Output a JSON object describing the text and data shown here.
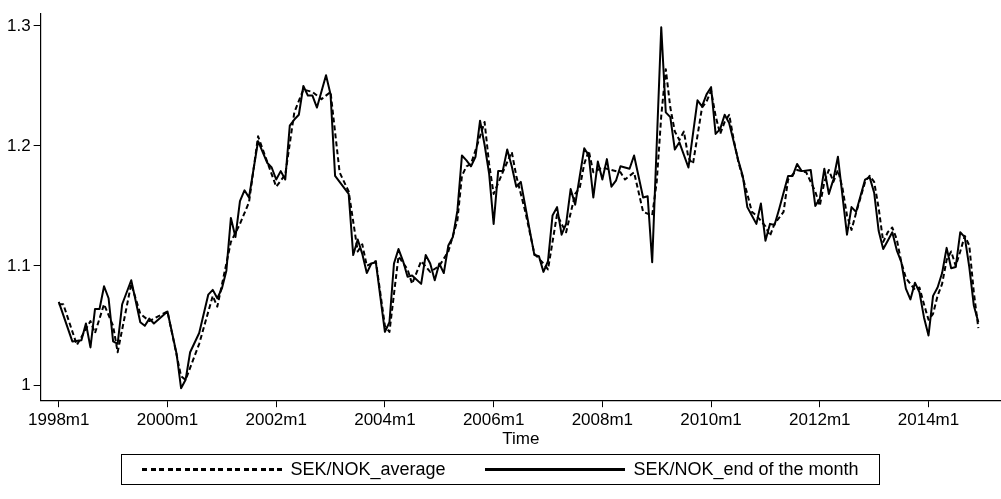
{
  "chart_data": {
    "type": "line",
    "xlabel": "Time",
    "legend": "bottom",
    "xlim": [
      "1997-09",
      "2015-05"
    ],
    "xticks": [
      {
        "value": "1998-01",
        "label": "1998m1"
      },
      {
        "value": "2000-01",
        "label": "2000m1"
      },
      {
        "value": "2002-01",
        "label": "2002m1"
      },
      {
        "value": "2004-01",
        "label": "2004m1"
      },
      {
        "value": "2006-01",
        "label": "2006m1"
      },
      {
        "value": "2008-01",
        "label": "2008m1"
      },
      {
        "value": "2010-01",
        "label": "2010m1"
      },
      {
        "value": "2012-01",
        "label": "2012m1"
      },
      {
        "value": "2014-01",
        "label": "2014m1"
      }
    ],
    "ylim": [
      0.988,
      1.31
    ],
    "yticks": [
      1,
      1.1,
      1.2,
      1.3
    ],
    "series": [
      {
        "name": "SEK/NOK_average",
        "color": "#000000",
        "line_style": "dashed",
        "x": [
          "1998-01",
          "1998-02",
          "1998-05",
          "1998-08",
          "1998-09",
          "1998-11",
          "1999-01",
          "1999-02",
          "1999-05",
          "1999-07",
          "1999-09",
          "2000-01",
          "2000-04",
          "2000-05",
          "2000-08",
          "2000-11",
          "2000-12",
          "2001-03",
          "2001-05",
          "2001-07",
          "2001-09",
          "2002-01",
          "2002-03",
          "2002-05",
          "2002-07",
          "2002-09",
          "2002-11",
          "2003-01",
          "2003-03",
          "2003-05",
          "2003-07",
          "2003-08",
          "2003-09",
          "2003-11",
          "2004-01",
          "2004-02",
          "2004-04",
          "2004-06",
          "2004-07",
          "2004-09",
          "2004-11",
          "2005-01",
          "2005-03",
          "2005-05",
          "2005-06",
          "2005-07",
          "2005-08",
          "2005-10",
          "2005-11",
          "2005-12",
          "2006-01",
          "2006-03",
          "2006-05",
          "2006-06",
          "2006-08",
          "2006-10",
          "2006-12",
          "2007-01",
          "2007-03",
          "2007-04",
          "2007-05",
          "2007-07",
          "2007-08",
          "2007-09",
          "2007-10",
          "2007-11",
          "2008-01",
          "2008-03",
          "2008-05",
          "2008-06",
          "2008-08",
          "2008-10",
          "2008-12",
          "2009-01",
          "2009-02",
          "2009-03",
          "2009-04",
          "2009-05",
          "2009-06",
          "2009-07",
          "2009-08",
          "2009-09",
          "2009-11",
          "2009-12",
          "2010-01",
          "2010-02",
          "2010-03",
          "2010-04",
          "2010-05",
          "2010-06",
          "2010-07",
          "2010-09",
          "2010-10",
          "2010-11",
          "2011-01",
          "2011-02",
          "2011-03",
          "2011-04",
          "2011-05",
          "2011-06",
          "2011-08",
          "2011-10",
          "2011-12",
          "2012-01",
          "2012-02",
          "2012-03",
          "2012-04",
          "2012-05",
          "2012-06",
          "2012-07",
          "2012-08",
          "2012-09",
          "2012-11",
          "2012-12",
          "2013-01",
          "2013-02",
          "2013-03",
          "2013-04",
          "2013-05",
          "2013-06",
          "2013-07",
          "2013-08",
          "2013-09",
          "2013-10",
          "2013-11",
          "2013-12",
          "2014-01",
          "2014-02",
          "2014-03",
          "2014-04",
          "2014-05",
          "2014-06",
          "2014-07",
          "2014-08",
          "2014-09",
          "2014-10",
          "2014-11",
          "2014-12"
        ],
        "values": [
          1.068,
          1.068,
          1.034,
          1.054,
          1.044,
          1.068,
          1.05,
          1.028,
          1.085,
          1.06,
          1.054,
          1.062,
          1.008,
          1.005,
          1.035,
          1.075,
          1.066,
          1.12,
          1.135,
          1.153,
          1.208,
          1.166,
          1.176,
          1.228,
          1.247,
          1.245,
          1.239,
          1.245,
          1.178,
          1.162,
          1.112,
          1.118,
          1.1,
          1.104,
          1.05,
          1.045,
          1.108,
          1.097,
          1.085,
          1.104,
          1.095,
          1.1,
          1.112,
          1.138,
          1.175,
          1.183,
          1.185,
          1.208,
          1.22,
          1.185,
          1.16,
          1.178,
          1.195,
          1.175,
          1.145,
          1.11,
          1.102,
          1.097,
          1.143,
          1.135,
          1.128,
          1.16,
          1.165,
          1.185,
          1.196,
          1.178,
          1.182,
          1.18,
          1.178,
          1.172,
          1.178,
          1.145,
          1.142,
          1.17,
          1.225,
          1.264,
          1.232,
          1.212,
          1.205,
          1.212,
          1.19,
          1.185,
          1.232,
          1.237,
          1.246,
          1.225,
          1.21,
          1.22,
          1.226,
          1.205,
          1.187,
          1.16,
          1.145,
          1.142,
          1.133,
          1.125,
          1.135,
          1.14,
          1.145,
          1.172,
          1.18,
          1.178,
          1.162,
          1.15,
          1.17,
          1.18,
          1.17,
          1.18,
          1.165,
          1.142,
          1.13,
          1.144,
          1.17,
          1.175,
          1.17,
          1.148,
          1.12,
          1.128,
          1.132,
          1.122,
          1.103,
          1.09,
          1.085,
          1.08,
          1.082,
          1.068,
          1.055,
          1.06,
          1.075,
          1.085,
          1.105,
          1.112,
          1.1,
          1.112,
          1.125,
          1.117,
          1.078,
          1.048
        ]
      },
      {
        "name": "SEK/NOK_end of the month",
        "color": "#000000",
        "line_style": "solid",
        "x": [
          "1998-01",
          "1998-04",
          "1998-06",
          "1998-07",
          "1998-08",
          "1998-09",
          "1998-10",
          "1998-11",
          "1998-12",
          "1999-01",
          "1999-02",
          "1999-03",
          "1999-05",
          "1999-07",
          "1999-08",
          "1999-09",
          "1999-10",
          "2000-01",
          "2000-03",
          "2000-04",
          "2000-05",
          "2000-06",
          "2000-08",
          "2000-10",
          "2000-11",
          "2000-12",
          "2001-01",
          "2001-02",
          "2001-03",
          "2001-04",
          "2001-05",
          "2001-06",
          "2001-07",
          "2001-09",
          "2001-11",
          "2001-12",
          "2002-01",
          "2002-02",
          "2002-03",
          "2002-04",
          "2002-05",
          "2002-06",
          "2002-07",
          "2002-08",
          "2002-09",
          "2002-10",
          "2002-12",
          "2003-01",
          "2003-02",
          "2003-05",
          "2003-06",
          "2003-07",
          "2003-08",
          "2003-09",
          "2003-10",
          "2003-11",
          "2004-01",
          "2004-02",
          "2004-03",
          "2004-04",
          "2004-05",
          "2004-06",
          "2004-07",
          "2004-09",
          "2004-10",
          "2004-11",
          "2004-12",
          "2005-01",
          "2005-02",
          "2005-03",
          "2005-04",
          "2005-05",
          "2005-06",
          "2005-07",
          "2005-08",
          "2005-09",
          "2005-10",
          "2005-11",
          "2005-12",
          "2006-01",
          "2006-02",
          "2006-03",
          "2006-04",
          "2006-05",
          "2006-06",
          "2006-07",
          "2006-09",
          "2006-10",
          "2006-11",
          "2006-12",
          "2007-01",
          "2007-02",
          "2007-03",
          "2007-04",
          "2007-05",
          "2007-06",
          "2007-07",
          "2007-09",
          "2007-10",
          "2007-11",
          "2007-12",
          "2008-01",
          "2008-02",
          "2008-03",
          "2008-04",
          "2008-05",
          "2008-07",
          "2008-08",
          "2008-10",
          "2008-11",
          "2008-12",
          "2009-02",
          "2009-03",
          "2009-04",
          "2009-05",
          "2009-06",
          "2009-08",
          "2009-10",
          "2009-11",
          "2009-12",
          "2010-01",
          "2010-02",
          "2010-03",
          "2010-04",
          "2010-05",
          "2010-07",
          "2010-08",
          "2010-09",
          "2010-10",
          "2010-11",
          "2010-12",
          "2011-01",
          "2011-02",
          "2011-03",
          "2011-04",
          "2011-06",
          "2011-07",
          "2011-08",
          "2011-09",
          "2011-11",
          "2011-12",
          "2012-01",
          "2012-02",
          "2012-03",
          "2012-04",
          "2012-05",
          "2012-07",
          "2012-08",
          "2012-09",
          "2012-11",
          "2012-12",
          "2013-01",
          "2013-02",
          "2013-03",
          "2013-04",
          "2013-05",
          "2013-06",
          "2013-07",
          "2013-08",
          "2013-09",
          "2013-10",
          "2013-11",
          "2013-12",
          "2014-01",
          "2014-02",
          "2014-03",
          "2014-04",
          "2014-05",
          "2014-06",
          "2014-07",
          "2014-08",
          "2014-09",
          "2014-10",
          "2014-11",
          "2014-12"
        ],
        "values": [
          1.07,
          1.037,
          1.038,
          1.052,
          1.032,
          1.064,
          1.064,
          1.083,
          1.073,
          1.037,
          1.035,
          1.068,
          1.088,
          1.053,
          1.05,
          1.056,
          1.052,
          1.062,
          1.027,
          0.998,
          1.005,
          1.028,
          1.044,
          1.076,
          1.08,
          1.073,
          1.081,
          1.096,
          1.14,
          1.124,
          1.154,
          1.163,
          1.157,
          1.204,
          1.186,
          1.182,
          1.172,
          1.179,
          1.172,
          1.217,
          1.222,
          1.226,
          1.25,
          1.242,
          1.242,
          1.232,
          1.259,
          1.243,
          1.175,
          1.16,
          1.109,
          1.122,
          1.11,
          1.094,
          1.102,
          1.103,
          1.045,
          1.053,
          1.102,
          1.114,
          1.104,
          1.091,
          1.092,
          1.085,
          1.109,
          1.102,
          1.088,
          1.102,
          1.094,
          1.117,
          1.124,
          1.146,
          1.192,
          1.188,
          1.183,
          1.191,
          1.221,
          1.201,
          1.177,
          1.135,
          1.179,
          1.179,
          1.197,
          1.183,
          1.166,
          1.17,
          1.129,
          1.109,
          1.108,
          1.095,
          1.104,
          1.142,
          1.149,
          1.126,
          1.135,
          1.164,
          1.151,
          1.198,
          1.192,
          1.157,
          1.187,
          1.172,
          1.189,
          1.166,
          1.171,
          1.183,
          1.181,
          1.192,
          1.157,
          1.158,
          1.103,
          1.299,
          1.228,
          1.224,
          1.197,
          1.203,
          1.182,
          1.238,
          1.233,
          1.243,
          1.249,
          1.21,
          1.214,
          1.226,
          1.219,
          1.188,
          1.175,
          1.149,
          1.142,
          1.135,
          1.152,
          1.121,
          1.135,
          1.134,
          1.147,
          1.175,
          1.175,
          1.185,
          1.179,
          1.18,
          1.15,
          1.156,
          1.181,
          1.16,
          1.172,
          1.191,
          1.126,
          1.149,
          1.145,
          1.172,
          1.174,
          1.161,
          1.129,
          1.114,
          1.121,
          1.128,
          1.113,
          1.103,
          1.081,
          1.072,
          1.086,
          1.078,
          1.057,
          1.042,
          1.075,
          1.082,
          1.094,
          1.115,
          1.098,
          1.099,
          1.128,
          1.124,
          1.099,
          1.067,
          1.053
        ]
      }
    ]
  }
}
